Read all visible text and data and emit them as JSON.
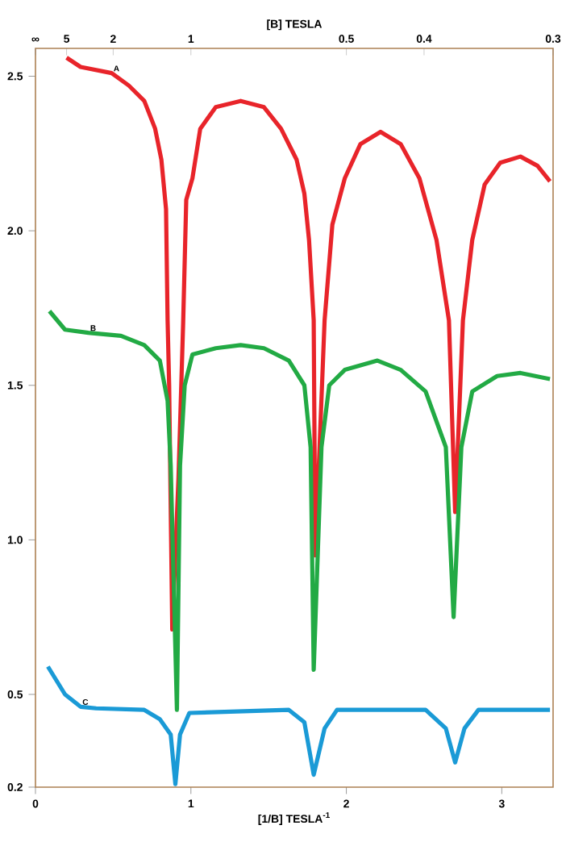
{
  "chart_data": {
    "type": "line",
    "xlabel": "[1/B] TESLA$^{-1}$",
    "x2label": "[B] TESLA",
    "xlim": [
      0,
      3.33
    ],
    "xticks": [
      0,
      1,
      2,
      3
    ],
    "annotations": [
      "∞",
      "5",
      "2",
      "1",
      "0.5",
      "0.4",
      "0.3"
    ],
    "ylim": [
      0.2,
      2.59
    ],
    "yticks": [
      0.2,
      0.5,
      {
        "value": 1,
        "label": "1.0"
      },
      1.5,
      {
        "value": 2,
        "label": "2.0"
      },
      2.5
    ],
    "grid": false,
    "legend": false,
    "marker": "none",
    "line_style": "solid",
    "series": [
      {
        "name": "A",
        "color": "#e8242a",
        "x": [
          0.2,
          0.29,
          0.49,
          0.6,
          0.7,
          0.77,
          0.81,
          0.84,
          0.85,
          0.86,
          0.88,
          0.92,
          0.95,
          0.97,
          1.01,
          1.06,
          1.16,
          1.32,
          1.47,
          1.58,
          1.68,
          1.73,
          1.76,
          1.79,
          1.8,
          1.86,
          1.91,
          1.99,
          2.09,
          2.22,
          2.35,
          2.47,
          2.58,
          2.66,
          2.7,
          2.75,
          2.81,
          2.89,
          2.99,
          3.12,
          3.23,
          3.31
        ],
        "values": [
          2.56,
          2.53,
          2.51,
          2.47,
          2.42,
          2.33,
          2.23,
          2.07,
          1.71,
          1.5,
          0.71,
          1.2,
          1.7,
          2.1,
          2.17,
          2.33,
          2.4,
          2.42,
          2.4,
          2.33,
          2.23,
          2.12,
          1.97,
          1.71,
          0.95,
          1.71,
          2.02,
          2.17,
          2.28,
          2.32,
          2.28,
          2.17,
          1.97,
          1.71,
          1.09,
          1.71,
          1.97,
          2.15,
          2.22,
          2.24,
          2.21,
          2.16
        ]
      },
      {
        "name": "B",
        "color": "#22aa44",
        "x": [
          0.09,
          0.19,
          0.34,
          0.55,
          0.7,
          0.8,
          0.85,
          0.87,
          0.91,
          0.93,
          0.96,
          1.01,
          1.16,
          1.32,
          1.47,
          1.63,
          1.73,
          1.77,
          1.79,
          1.84,
          1.89,
          1.99,
          2.2,
          2.35,
          2.51,
          2.64,
          2.69,
          2.74,
          2.81,
          2.97,
          3.12,
          3.31
        ],
        "values": [
          1.74,
          1.68,
          1.67,
          1.66,
          1.63,
          1.58,
          1.45,
          1.24,
          0.45,
          1.24,
          1.5,
          1.6,
          1.62,
          1.63,
          1.62,
          1.58,
          1.5,
          1.3,
          0.58,
          1.3,
          1.5,
          1.55,
          1.58,
          1.55,
          1.48,
          1.3,
          0.75,
          1.3,
          1.48,
          1.53,
          1.54,
          1.52
        ]
      },
      {
        "name": "C",
        "color": "#1a9ad6",
        "x": [
          0.08,
          0.19,
          0.29,
          0.39,
          0.7,
          0.8,
          0.87,
          0.9,
          0.93,
          0.99,
          1.63,
          1.73,
          1.79,
          1.86,
          1.94,
          2.51,
          2.64,
          2.7,
          2.76,
          2.85,
          3.31
        ],
        "values": [
          0.59,
          0.5,
          0.46,
          0.455,
          0.45,
          0.42,
          0.37,
          0.21,
          0.37,
          0.44,
          0.45,
          0.41,
          0.24,
          0.39,
          0.45,
          0.45,
          0.39,
          0.28,
          0.39,
          0.45,
          0.45
        ]
      }
    ]
  }
}
